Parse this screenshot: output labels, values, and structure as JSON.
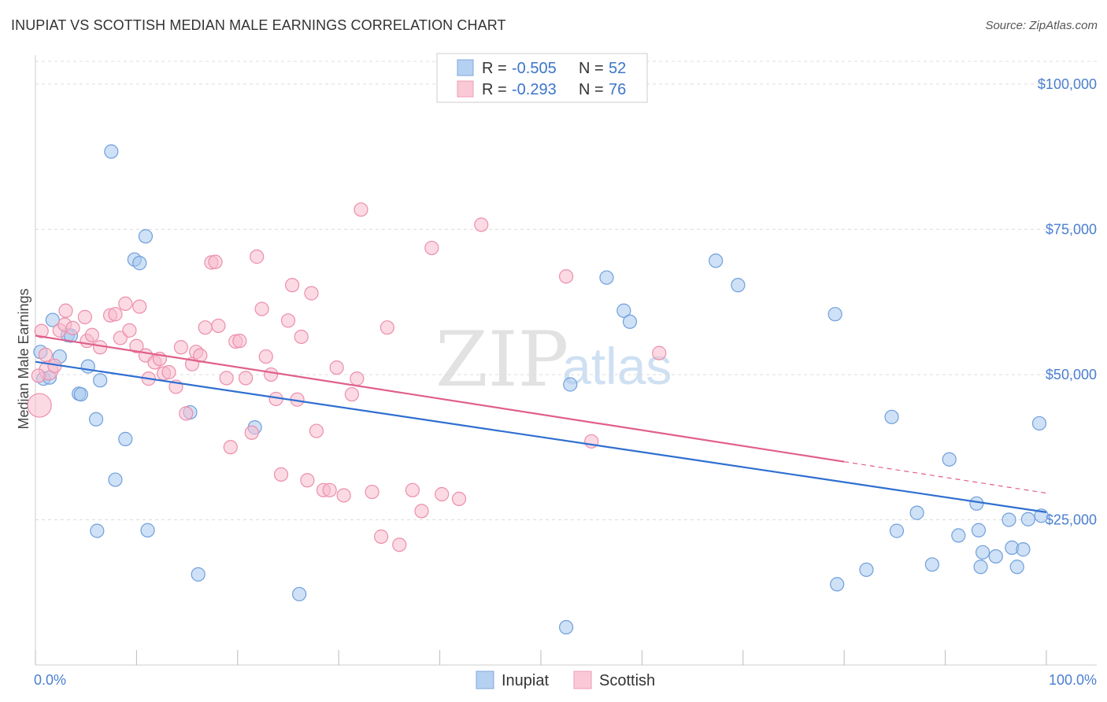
{
  "title": "INUPIAT VS SCOTTISH MEDIAN MALE EARNINGS CORRELATION CHART",
  "source": "Source: ZipAtlas.com",
  "watermark": {
    "zip": "ZIP",
    "atlas": "atlas"
  },
  "colors": {
    "inupiat_fill": "#a8c8ef",
    "inupiat_stroke": "#6f9fdc",
    "inupiat_line": "#2f6fd0",
    "scottish_fill": "#f7bccd",
    "scottish_stroke": "#ec8eaa",
    "scottish_line": "#e0608a",
    "tick": "#4a7fd0",
    "grid": "#dcdcdc"
  },
  "legend": {
    "r_label": "R =",
    "n_label": "N =",
    "rows": [
      {
        "series": "Inupiat",
        "r": "-0.505",
        "n": "52"
      },
      {
        "series": "Scottish",
        "r": "-0.293",
        "n": "76"
      }
    ]
  },
  "chart_data": {
    "type": "scatter",
    "title": "INUPIAT VS SCOTTISH MEDIAN MALE EARNINGS CORRELATION CHART",
    "xlabel": "",
    "ylabel": "Median Male Earnings",
    "xlim": [
      0,
      100
    ],
    "ylim": [
      0,
      105000
    ],
    "x_tick_labels": [
      "0.0%",
      "100.0%"
    ],
    "y_ticks": [
      25000,
      50000,
      75000,
      100000
    ],
    "y_tick_labels": [
      "$25,000",
      "$50,000",
      "$75,000",
      "$100,000"
    ],
    "grid": "horizontal dashed",
    "legend_position": "top-center",
    "series": [
      {
        "name": "Inupiat",
        "trend": {
          "x0": 0,
          "y0": 52200,
          "x1": 100,
          "y1": 26300
        },
        "points": [
          [
            0.5,
            53900
          ],
          [
            0.8,
            49300
          ],
          [
            1.7,
            59400
          ],
          [
            2.4,
            53100
          ],
          [
            3.2,
            56800
          ],
          [
            3.5,
            56700
          ],
          [
            4.3,
            46700
          ],
          [
            4.5,
            46600
          ],
          [
            5.2,
            51400
          ],
          [
            6.0,
            42300
          ],
          [
            6.4,
            49000
          ],
          [
            7.5,
            88400
          ],
          [
            7.9,
            31900
          ],
          [
            8.9,
            38900
          ],
          [
            9.8,
            69800
          ],
          [
            10.3,
            69200
          ],
          [
            10.9,
            73800
          ],
          [
            6.1,
            23100
          ],
          [
            11.1,
            23200
          ],
          [
            15.3,
            43500
          ],
          [
            16.1,
            15600
          ],
          [
            21.7,
            40900
          ],
          [
            26.1,
            12200
          ],
          [
            52.5,
            6500
          ],
          [
            52.9,
            48300
          ],
          [
            56.5,
            66700
          ],
          [
            58.2,
            61000
          ],
          [
            58.8,
            59100
          ],
          [
            67.3,
            69600
          ],
          [
            69.5,
            65400
          ],
          [
            79.1,
            60400
          ],
          [
            79.3,
            13900
          ],
          [
            82.2,
            16400
          ],
          [
            84.7,
            42700
          ],
          [
            85.2,
            23100
          ],
          [
            87.2,
            26200
          ],
          [
            88.7,
            17300
          ],
          [
            90.4,
            35400
          ],
          [
            91.3,
            22300
          ],
          [
            93.1,
            27800
          ],
          [
            93.3,
            23200
          ],
          [
            93.5,
            16900
          ],
          [
            93.7,
            19400
          ],
          [
            95.0,
            18700
          ],
          [
            96.3,
            25000
          ],
          [
            96.6,
            20200
          ],
          [
            97.1,
            16900
          ],
          [
            97.7,
            19900
          ],
          [
            98.2,
            25100
          ],
          [
            99.3,
            41600
          ],
          [
            99.5,
            25700
          ],
          [
            1.4,
            49500
          ]
        ]
      },
      {
        "name": "Scottish",
        "trend": {
          "x0": 0,
          "y0": 56700,
          "x1": 80,
          "y1": 35000
        },
        "trend_dashed": {
          "x0": 80,
          "y0": 35000,
          "x1": 100,
          "y1": 29600
        },
        "points": [
          [
            0.4,
            44700
          ],
          [
            1.0,
            53400
          ],
          [
            1.3,
            50700
          ],
          [
            1.9,
            51500
          ],
          [
            2.4,
            57600
          ],
          [
            2.9,
            58600
          ],
          [
            3.0,
            61000
          ],
          [
            3.7,
            58000
          ],
          [
            4.9,
            59900
          ],
          [
            5.1,
            55800
          ],
          [
            5.6,
            56800
          ],
          [
            6.4,
            54700
          ],
          [
            7.4,
            60200
          ],
          [
            7.9,
            60400
          ],
          [
            8.4,
            56300
          ],
          [
            8.9,
            62200
          ],
          [
            9.3,
            57600
          ],
          [
            10.0,
            54900
          ],
          [
            10.3,
            61700
          ],
          [
            10.9,
            53300
          ],
          [
            11.2,
            49300
          ],
          [
            11.8,
            52100
          ],
          [
            12.3,
            52700
          ],
          [
            12.7,
            50200
          ],
          [
            13.2,
            50400
          ],
          [
            13.9,
            47900
          ],
          [
            14.4,
            54700
          ],
          [
            14.9,
            43300
          ],
          [
            15.5,
            51800
          ],
          [
            15.9,
            53900
          ],
          [
            16.3,
            53300
          ],
          [
            16.8,
            58100
          ],
          [
            17.4,
            69300
          ],
          [
            17.8,
            69400
          ],
          [
            18.1,
            58400
          ],
          [
            18.9,
            49400
          ],
          [
            19.3,
            37500
          ],
          [
            19.8,
            55700
          ],
          [
            20.2,
            55800
          ],
          [
            20.8,
            49400
          ],
          [
            21.4,
            40000
          ],
          [
            21.9,
            70300
          ],
          [
            22.4,
            61300
          ],
          [
            22.8,
            53100
          ],
          [
            23.3,
            50000
          ],
          [
            23.8,
            45800
          ],
          [
            24.3,
            32800
          ],
          [
            25.0,
            59300
          ],
          [
            25.4,
            65400
          ],
          [
            25.9,
            45700
          ],
          [
            26.3,
            56500
          ],
          [
            26.9,
            31800
          ],
          [
            27.3,
            64000
          ],
          [
            27.8,
            40300
          ],
          [
            28.5,
            30100
          ],
          [
            29.1,
            30100
          ],
          [
            29.8,
            51200
          ],
          [
            30.5,
            29200
          ],
          [
            31.3,
            46600
          ],
          [
            31.8,
            49300
          ],
          [
            32.2,
            78400
          ],
          [
            33.3,
            29800
          ],
          [
            34.2,
            22100
          ],
          [
            34.8,
            58100
          ],
          [
            36.0,
            20700
          ],
          [
            37.3,
            30100
          ],
          [
            38.2,
            26500
          ],
          [
            39.2,
            71800
          ],
          [
            40.2,
            29400
          ],
          [
            41.9,
            28600
          ],
          [
            44.1,
            75800
          ],
          [
            52.5,
            66900
          ],
          [
            55.0,
            38500
          ],
          [
            61.7,
            53700
          ],
          [
            0.6,
            57500
          ],
          [
            0.3,
            49800
          ]
        ]
      }
    ]
  },
  "bottom_legend": [
    {
      "label": "Inupiat"
    },
    {
      "label": "Scottish"
    }
  ]
}
